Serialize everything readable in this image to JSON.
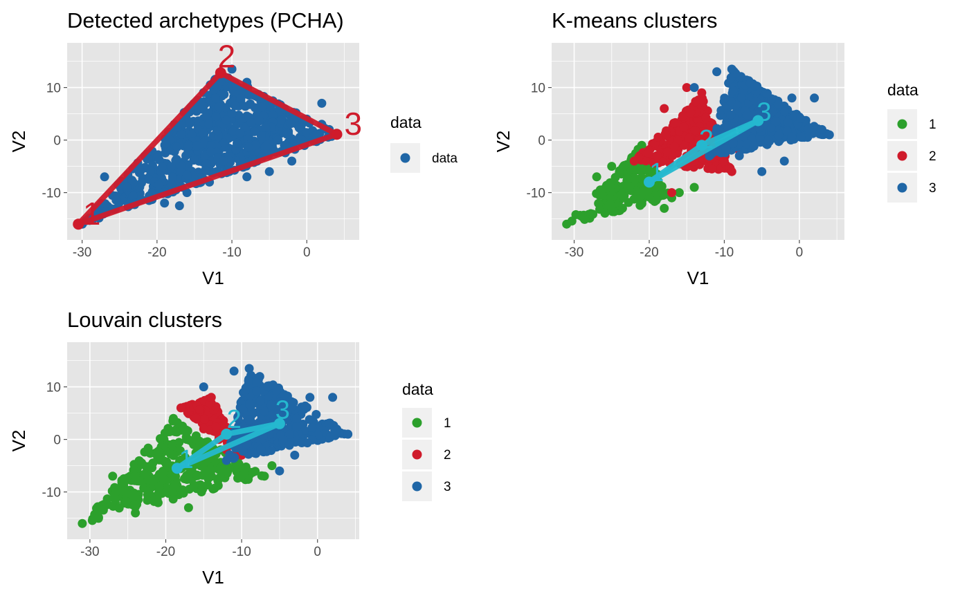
{
  "colors": {
    "panel_bg": "#e5e5e5",
    "grid": "#ffffff",
    "tick": "#4d4d4d",
    "legend_key_bg": "#f0f0f0",
    "cluster_1": "#2ca02c",
    "cluster_2": "#cf1b2b",
    "cluster_3": "#1f66a6",
    "data": "#1f66a6",
    "archetype_pcha": "#cf1b2b",
    "archetype_cluster": "#25b8cf"
  },
  "chart_data": [
    {
      "type": "scatter",
      "title": "Detected archetypes (PCHA)",
      "xlabel": "V1",
      "ylabel": "V2",
      "xlim": [
        -32,
        7
      ],
      "ylim": [
        -19,
        18.5
      ],
      "xticks": [
        -30,
        -20,
        -10,
        0
      ],
      "yticks": [
        -10,
        0,
        10
      ],
      "xtick_labels": [
        "-30",
        "-20",
        "-10",
        "0"
      ],
      "ytick_labels": [
        "-10",
        "0",
        "10"
      ],
      "grid": true,
      "legend": {
        "title": "data",
        "position": "right",
        "entries": [
          {
            "label": "data",
            "color": "#1f66a6"
          }
        ]
      },
      "point_groups": [
        {
          "name": "data",
          "color": "#1f66a6",
          "triangle": [
            [
              -30,
              -16
            ],
            [
              -11.5,
              13
            ],
            [
              4,
              1
            ]
          ],
          "extra": [
            [
              -27,
              -7
            ],
            [
              -24,
              -9
            ],
            [
              -19,
              -12
            ],
            [
              -17,
              -12.5
            ],
            [
              -10,
              13.5
            ],
            [
              -8,
              11
            ],
            [
              -6,
              8
            ],
            [
              -3,
              6
            ],
            [
              2,
              3
            ],
            [
              2,
              7
            ],
            [
              3,
              2
            ],
            [
              -2,
              -4
            ],
            [
              -5,
              -6
            ],
            [
              -8,
              -7
            ],
            [
              -13,
              -8
            ],
            [
              -16,
              -10
            ]
          ],
          "count": 700
        }
      ],
      "archetypes": {
        "color": "#cf1b2b",
        "points": [
          {
            "label": "1",
            "x": -30.5,
            "y": -16
          },
          {
            "label": "2",
            "x": -11.5,
            "y": 12.8
          },
          {
            "label": "3",
            "x": 4,
            "y": 1.1
          }
        ],
        "label_offsets": [
          [
            1.8,
            1.5
          ],
          [
            0.8,
            2.6
          ],
          [
            2.2,
            1.5
          ]
        ]
      }
    },
    {
      "type": "scatter",
      "title": "K-means clusters",
      "xlabel": "V1",
      "ylabel": "V2",
      "xlim": [
        -33,
        6
      ],
      "ylim": [
        -19,
        18.5
      ],
      "xticks": [
        -30,
        -20,
        -10,
        0
      ],
      "yticks": [
        -10,
        0,
        10
      ],
      "xtick_labels": [
        "-30",
        "-20",
        "-10",
        "0"
      ],
      "ytick_labels": [
        "-10",
        "0",
        "10"
      ],
      "grid": true,
      "legend": {
        "title": "data",
        "position": "right",
        "entries": [
          {
            "label": "1",
            "color": "#2ca02c"
          },
          {
            "label": "2",
            "color": "#cf1b2b"
          },
          {
            "label": "3",
            "color": "#1f66a6"
          }
        ]
      },
      "point_groups": [
        {
          "name": "1",
          "color": "#2ca02c",
          "triangle": [
            [
              -31,
              -16
            ],
            [
              -21,
              -1
            ],
            [
              -17,
              -11
            ]
          ],
          "extra": [
            [
              -27,
              -7
            ],
            [
              -25,
              -5
            ],
            [
              -18,
              -13
            ],
            [
              -16,
              -10
            ],
            [
              -14,
              -9
            ]
          ],
          "count": 220
        },
        {
          "name": "2",
          "color": "#cf1b2b",
          "triangle": [
            [
              -22,
              -4
            ],
            [
              -13,
              9
            ],
            [
              -9,
              -6
            ]
          ],
          "extra": [
            [
              -18,
              6
            ],
            [
              -15,
              10
            ],
            [
              -10,
              -4
            ],
            [
              -17,
              -10
            ],
            [
              -8,
              -2
            ]
          ],
          "count": 300
        },
        {
          "name": "3",
          "color": "#1f66a6",
          "triangle": [
            [
              -12,
              -3
            ],
            [
              -9,
              13.5
            ],
            [
              4,
              1
            ]
          ],
          "extra": [
            [
              -11,
              13
            ],
            [
              -14,
              10
            ],
            [
              -1,
              8
            ],
            [
              2,
              8
            ],
            [
              -5,
              -6
            ],
            [
              -8,
              -3
            ],
            [
              -2,
              -4
            ],
            [
              3,
              2
            ]
          ],
          "count": 400
        }
      ],
      "archetypes": {
        "color": "#25b8cf",
        "points": [
          {
            "label": "1",
            "x": -20,
            "y": -8
          },
          {
            "label": "2",
            "x": -13,
            "y": -1
          },
          {
            "label": "3",
            "x": -5.5,
            "y": 3.7
          }
        ],
        "label_offsets": [
          [
            1.0,
            1.5
          ],
          [
            0.6,
            0.8
          ],
          [
            0.8,
            1.3
          ]
        ]
      }
    },
    {
      "type": "scatter",
      "title": "Louvain clusters",
      "xlabel": "V1",
      "ylabel": "V2",
      "xlim": [
        -33,
        5.5
      ],
      "ylim": [
        -19,
        18.5
      ],
      "xticks": [
        -30,
        -20,
        -10,
        0
      ],
      "yticks": [
        -10,
        0,
        10
      ],
      "xtick_labels": [
        "-30",
        "-20",
        "-10",
        "0"
      ],
      "ytick_labels": [
        "-10",
        "0",
        "10"
      ],
      "grid": true,
      "legend": {
        "title": "data",
        "position": "right",
        "entries": [
          {
            "label": "1",
            "color": "#2ca02c"
          },
          {
            "label": "2",
            "color": "#cf1b2b"
          },
          {
            "label": "3",
            "color": "#1f66a6"
          }
        ]
      },
      "point_groups": [
        {
          "name": "1",
          "color": "#2ca02c",
          "triangle": [
            [
              -31,
              -16
            ],
            [
              -19,
              4
            ],
            [
              -7,
              -7
            ]
          ],
          "extra": [
            [
              -27,
              -7
            ],
            [
              -24,
              -14
            ],
            [
              -17,
              -13
            ],
            [
              -10,
              -7
            ],
            [
              -6,
              -5
            ]
          ],
          "count": 320
        },
        {
          "name": "2",
          "color": "#cf1b2b",
          "triangle": [
            [
              -18,
              6
            ],
            [
              -14,
              8
            ],
            [
              -10,
              -3
            ]
          ],
          "extra": [
            [
              -15,
              2
            ],
            [
              -13,
              0
            ],
            [
              -12,
              -2
            ],
            [
              -16,
              4
            ]
          ],
          "count": 160
        },
        {
          "name": "3",
          "color": "#1f66a6",
          "triangle": [
            [
              -12,
              -4
            ],
            [
              -9,
              13.5
            ],
            [
              4,
              1
            ]
          ],
          "extra": [
            [
              -15,
              10
            ],
            [
              -11,
              13
            ],
            [
              -1,
              8
            ],
            [
              2,
              8
            ],
            [
              -5,
              -6
            ],
            [
              -3,
              -3
            ],
            [
              4,
              1
            ]
          ],
          "count": 360
        }
      ],
      "archetypes": {
        "color": "#25b8cf",
        "points": [
          {
            "label": "1",
            "x": -18.5,
            "y": -5.5
          },
          {
            "label": "2",
            "x": -12,
            "y": 1
          },
          {
            "label": "3",
            "x": -5,
            "y": 3
          }
        ],
        "label_offsets": [
          [
            1.2,
            1.4
          ],
          [
            1.0,
            2.5
          ],
          [
            0.4,
            2.3
          ]
        ]
      }
    }
  ]
}
